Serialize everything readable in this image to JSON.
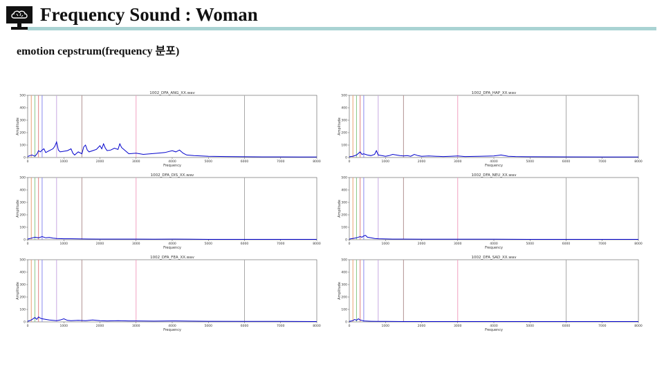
{
  "header": {
    "title": "Frequency Sound : Woman",
    "subtitle": "emotion cepstrum(frequency 분포)",
    "logo_icon": "brain-monitor-icon",
    "bar_color": "#a9d3d3"
  },
  "chart_data": [
    {
      "type": "line",
      "title": "1002_DFA_ANG_XX.wav",
      "xlabel": "Frequency",
      "ylabel": "Amplitude",
      "xlim": [
        0,
        8000
      ],
      "ylim": [
        0,
        500
      ],
      "xticks": [
        0,
        1000,
        2000,
        3000,
        4000,
        5000,
        6000,
        7000,
        8000
      ],
      "yticks": [
        0,
        100,
        200,
        300,
        400,
        500
      ],
      "series": [
        {
          "color": "#0000cc",
          "x": [
            0,
            60,
            120,
            200,
            260,
            300,
            350,
            400,
            450,
            500,
            600,
            700,
            750,
            800,
            850,
            900,
            1000,
            1100,
            1200,
            1250,
            1300,
            1400,
            1500,
            1550,
            1600,
            1650,
            1700,
            1800,
            1900,
            1950,
            2000,
            2050,
            2100,
            2150,
            2200,
            2300,
            2400,
            2500,
            2550,
            2600,
            2700,
            2800,
            3000,
            3200,
            3400,
            3600,
            3800,
            4000,
            4100,
            4200,
            4300,
            4400,
            4600,
            4800,
            5000,
            5500,
            6000,
            6500,
            7000,
            7500,
            8000
          ],
          "y": [
            8,
            15,
            20,
            10,
            30,
            55,
            45,
            60,
            70,
            40,
            55,
            70,
            90,
            125,
            60,
            45,
            50,
            55,
            70,
            35,
            20,
            45,
            30,
            85,
            100,
            60,
            45,
            55,
            65,
            80,
            95,
            70,
            110,
            75,
            55,
            60,
            75,
            65,
            110,
            80,
            55,
            30,
            35,
            25,
            30,
            35,
            40,
            55,
            45,
            60,
            35,
            20,
            15,
            12,
            10,
            8,
            6,
            5,
            5,
            4,
            4
          ]
        }
      ],
      "reference_lines": [
        {
          "x": 100,
          "color": "#e8a070"
        },
        {
          "x": 200,
          "color": "#88c888"
        },
        {
          "x": 300,
          "color": "#e08080"
        },
        {
          "x": 400,
          "color": "#8888ee"
        },
        {
          "x": 800,
          "color": "#c8a8e0"
        },
        {
          "x": 1500,
          "color": "#b09090"
        },
        {
          "x": 3000,
          "color": "#f0a0c0"
        },
        {
          "x": 6000,
          "color": "#a8a8a8"
        }
      ]
    },
    {
      "type": "line",
      "title": "1002_DFA_HAP_XX.wav",
      "xlabel": "Frequency",
      "ylabel": "Amplitude",
      "xlim": [
        0,
        8000
      ],
      "ylim": [
        0,
        500
      ],
      "xticks": [
        0,
        1000,
        2000,
        3000,
        4000,
        5000,
        6000,
        7000,
        8000
      ],
      "yticks": [
        0,
        100,
        200,
        300,
        400,
        500
      ],
      "series": [
        {
          "color": "#0000cc",
          "x": [
            0,
            100,
            200,
            300,
            350,
            400,
            500,
            600,
            700,
            750,
            800,
            900,
            1000,
            1100,
            1200,
            1300,
            1400,
            1500,
            1600,
            1700,
            1800,
            1900,
            2000,
            2200,
            2400,
            2600,
            2800,
            3000,
            3200,
            3600,
            4000,
            4200,
            4400,
            4600,
            5000,
            6000,
            7000,
            8000
          ],
          "y": [
            6,
            10,
            20,
            45,
            25,
            30,
            20,
            15,
            25,
            55,
            20,
            15,
            10,
            15,
            25,
            20,
            15,
            12,
            15,
            10,
            25,
            15,
            10,
            12,
            10,
            8,
            10,
            12,
            8,
            10,
            12,
            20,
            10,
            8,
            6,
            5,
            4,
            4
          ]
        }
      ],
      "reference_lines": [
        {
          "x": 100,
          "color": "#e8a070"
        },
        {
          "x": 200,
          "color": "#88c888"
        },
        {
          "x": 300,
          "color": "#e08080"
        },
        {
          "x": 400,
          "color": "#8888ee"
        },
        {
          "x": 800,
          "color": "#c8a8e0"
        },
        {
          "x": 1500,
          "color": "#b09090"
        },
        {
          "x": 3000,
          "color": "#f0a0c0"
        },
        {
          "x": 6000,
          "color": "#a8a8a8"
        }
      ]
    },
    {
      "type": "line",
      "title": "1002_DFA_DIS_XX.wav",
      "xlabel": "Frequency",
      "ylabel": "Amplitude",
      "xlim": [
        0,
        8000
      ],
      "ylim": [
        0,
        500
      ],
      "xticks": [
        0,
        1000,
        2000,
        3000,
        4000,
        5000,
        6000,
        7000,
        8000
      ],
      "yticks": [
        0,
        100,
        200,
        300,
        400,
        500
      ],
      "series": [
        {
          "color": "#0000cc",
          "x": [
            0,
            100,
            200,
            300,
            400,
            500,
            600,
            700,
            800,
            1000,
            1200,
            1500,
            2000,
            2500,
            3000,
            3500,
            4000,
            4500,
            5000,
            6000,
            7000,
            8000
          ],
          "y": [
            5,
            12,
            20,
            15,
            25,
            15,
            18,
            12,
            10,
            8,
            8,
            6,
            5,
            5,
            5,
            4,
            5,
            4,
            3,
            3,
            3,
            3
          ]
        }
      ],
      "reference_lines": [
        {
          "x": 100,
          "color": "#e8a070"
        },
        {
          "x": 200,
          "color": "#88c888"
        },
        {
          "x": 300,
          "color": "#e08080"
        },
        {
          "x": 400,
          "color": "#8888ee"
        },
        {
          "x": 800,
          "color": "#c8a8e0"
        },
        {
          "x": 1500,
          "color": "#b09090"
        },
        {
          "x": 3000,
          "color": "#f0a0c0"
        },
        {
          "x": 6000,
          "color": "#a8a8a8"
        }
      ]
    },
    {
      "type": "line",
      "title": "1002_DFA_NEU_XX.wav",
      "xlabel": "Frequency",
      "ylabel": "Amplitude",
      "xlim": [
        0,
        8000
      ],
      "ylim": [
        0,
        500
      ],
      "xticks": [
        0,
        1000,
        2000,
        3000,
        4000,
        5000,
        6000,
        7000,
        8000
      ],
      "yticks": [
        0,
        100,
        200,
        300,
        400,
        500
      ],
      "series": [
        {
          "color": "#0000cc",
          "x": [
            0,
            100,
            200,
            300,
            350,
            400,
            450,
            500,
            600,
            700,
            800,
            1000,
            1200,
            1500,
            2000,
            2500,
            3000,
            4000,
            5000,
            6000,
            7000,
            8000
          ],
          "y": [
            5,
            10,
            15,
            25,
            20,
            30,
            35,
            20,
            15,
            10,
            8,
            6,
            5,
            5,
            4,
            4,
            4,
            4,
            3,
            3,
            3,
            3
          ]
        }
      ],
      "reference_lines": [
        {
          "x": 100,
          "color": "#e8a070"
        },
        {
          "x": 200,
          "color": "#88c888"
        },
        {
          "x": 300,
          "color": "#e08080"
        },
        {
          "x": 400,
          "color": "#8888ee"
        },
        {
          "x": 800,
          "color": "#c8a8e0"
        },
        {
          "x": 1500,
          "color": "#b09090"
        },
        {
          "x": 3000,
          "color": "#f0a0c0"
        },
        {
          "x": 6000,
          "color": "#a8a8a8"
        }
      ]
    },
    {
      "type": "line",
      "title": "1002_DFA_FEA_XX.wav",
      "xlabel": "Frequency",
      "ylabel": "Amplitude",
      "xlim": [
        0,
        8000
      ],
      "ylim": [
        0,
        500
      ],
      "xticks": [
        0,
        1000,
        2000,
        3000,
        4000,
        5000,
        6000,
        7000,
        8000
      ],
      "yticks": [
        0,
        100,
        200,
        300,
        400,
        500
      ],
      "series": [
        {
          "color": "#0000cc",
          "x": [
            0,
            100,
            200,
            250,
            300,
            350,
            400,
            500,
            600,
            700,
            800,
            900,
            1000,
            1100,
            1200,
            1400,
            1600,
            1800,
            2000,
            2200,
            2500,
            2800,
            3000,
            3500,
            4000,
            4500,
            5000,
            6000,
            7000,
            8000
          ],
          "y": [
            5,
            15,
            35,
            20,
            40,
            30,
            25,
            20,
            15,
            12,
            10,
            15,
            25,
            12,
            10,
            12,
            10,
            15,
            10,
            8,
            10,
            8,
            8,
            6,
            8,
            6,
            5,
            4,
            4,
            3
          ]
        }
      ],
      "reference_lines": [
        {
          "x": 100,
          "color": "#e8a070"
        },
        {
          "x": 200,
          "color": "#88c888"
        },
        {
          "x": 300,
          "color": "#e08080"
        },
        {
          "x": 400,
          "color": "#8888ee"
        },
        {
          "x": 800,
          "color": "#c8a8e0"
        },
        {
          "x": 1500,
          "color": "#b09090"
        },
        {
          "x": 3000,
          "color": "#f0a0c0"
        },
        {
          "x": 6000,
          "color": "#a8a8a8"
        }
      ]
    },
    {
      "type": "line",
      "title": "1002_DFA_SAD_XX.wav",
      "xlabel": "Frequency",
      "ylabel": "Amplitude",
      "xlim": [
        0,
        8000
      ],
      "ylim": [
        0,
        500
      ],
      "xticks": [
        0,
        1000,
        2000,
        3000,
        4000,
        5000,
        6000,
        7000,
        8000
      ],
      "yticks": [
        0,
        100,
        200,
        300,
        400,
        500
      ],
      "series": [
        {
          "color": "#0000cc",
          "x": [
            0,
            100,
            150,
            200,
            250,
            300,
            350,
            400,
            500,
            600,
            800,
            1000,
            1500,
            2000,
            3000,
            4000,
            5000,
            6000,
            7000,
            8000
          ],
          "y": [
            4,
            10,
            20,
            12,
            25,
            15,
            12,
            8,
            6,
            5,
            4,
            4,
            3,
            3,
            3,
            3,
            3,
            3,
            3,
            3
          ]
        }
      ],
      "reference_lines": [
        {
          "x": 100,
          "color": "#e8a070"
        },
        {
          "x": 200,
          "color": "#88c888"
        },
        {
          "x": 300,
          "color": "#e08080"
        },
        {
          "x": 400,
          "color": "#8888ee"
        },
        {
          "x": 800,
          "color": "#c8a8e0"
        },
        {
          "x": 1500,
          "color": "#b09090"
        },
        {
          "x": 3000,
          "color": "#f0a0c0"
        },
        {
          "x": 6000,
          "color": "#a8a8a8"
        }
      ]
    }
  ]
}
